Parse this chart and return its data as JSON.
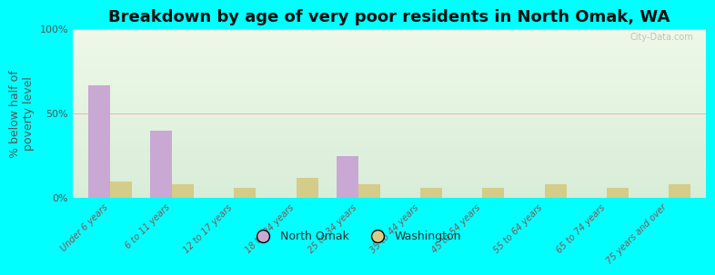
{
  "title": "Breakdown by age of very poor residents in North Omak, WA",
  "ylabel": "% below half of\npoverty level",
  "categories": [
    "Under 6 years",
    "6 to 11 years",
    "12 to 17 years",
    "18 to 24 years",
    "25 to 34 years",
    "35 to 44 years",
    "45 to 54 years",
    "55 to 64 years",
    "65 to 74 years",
    "75 years and over"
  ],
  "north_omak": [
    67,
    40,
    0,
    0,
    25,
    0,
    0,
    0,
    0,
    0
  ],
  "washington": [
    10,
    8,
    6,
    12,
    8,
    6,
    6,
    8,
    6,
    8
  ],
  "north_omak_color": "#c9a8d4",
  "washington_color": "#d4cc88",
  "ylim": [
    0,
    100
  ],
  "yticks": [
    0,
    50,
    100
  ],
  "ytick_labels": [
    "0%",
    "50%",
    "100%"
  ],
  "background_color": "#00ffff",
  "plot_bg_top_color": "#d8edd8",
  "plot_bg_bottom_color": "#eef5e8",
  "bar_width": 0.35,
  "title_fontsize": 13,
  "axis_fontsize": 9,
  "tick_fontsize": 8,
  "legend_labels": [
    "North Omak",
    "Washington"
  ],
  "watermark": "City-Data.com",
  "xtick_color": "#885555",
  "ytick_color": "#555555"
}
